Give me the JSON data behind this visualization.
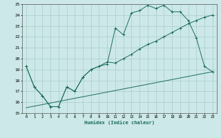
{
  "title": "",
  "xlabel": "Humidex (Indice chaleur)",
  "bg_color": "#cce8e8",
  "grid_color": "#aacccc",
  "line_color": "#1a6b5a",
  "xlim": [
    -0.5,
    23.5
  ],
  "ylim": [
    15,
    25
  ],
  "xticks": [
    0,
    1,
    2,
    3,
    4,
    5,
    6,
    7,
    8,
    9,
    10,
    11,
    12,
    13,
    14,
    15,
    16,
    17,
    18,
    19,
    20,
    21,
    22,
    23
  ],
  "yticks": [
    15,
    16,
    17,
    18,
    19,
    20,
    21,
    22,
    23,
    24,
    25
  ],
  "line1_x": [
    0,
    1,
    2,
    3,
    4,
    5,
    6,
    7,
    8,
    9,
    10,
    11,
    12,
    13,
    14,
    15,
    16,
    17,
    18,
    19,
    20,
    21,
    22,
    23
  ],
  "line1_y": [
    19.3,
    17.4,
    16.6,
    15.6,
    15.6,
    17.4,
    17.0,
    18.3,
    19.0,
    19.3,
    19.5,
    22.8,
    22.2,
    24.2,
    24.4,
    24.9,
    24.6,
    24.9,
    24.3,
    24.3,
    23.5,
    21.9,
    19.3,
    18.8
  ],
  "line2_x": [
    0,
    1,
    2,
    3,
    4,
    5,
    6,
    7,
    8,
    9,
    10,
    11,
    12,
    13,
    14,
    15,
    16,
    17,
    18,
    19,
    20,
    21,
    22,
    23
  ],
  "line2_y": [
    19.3,
    17.4,
    16.6,
    15.6,
    15.6,
    17.4,
    17.0,
    18.3,
    19.0,
    19.3,
    19.7,
    19.6,
    20.0,
    20.4,
    20.9,
    21.3,
    21.6,
    22.0,
    22.4,
    22.8,
    23.2,
    23.5,
    23.8,
    24.0
  ],
  "line3_x": [
    0,
    23
  ],
  "line3_y": [
    15.5,
    18.8
  ]
}
